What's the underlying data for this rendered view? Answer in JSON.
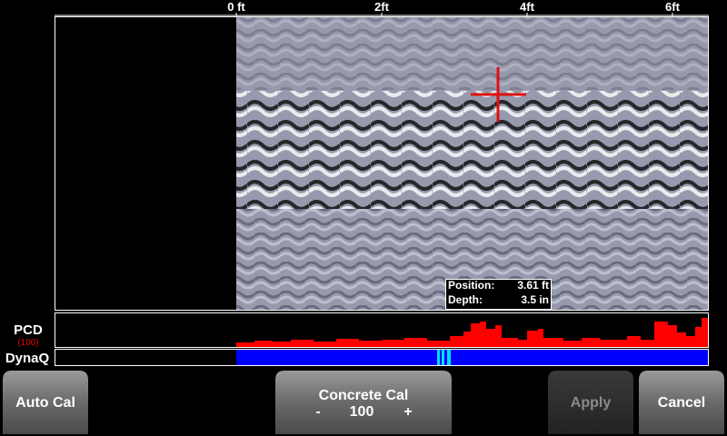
{
  "axis": {
    "ticks": [
      "0 ft",
      "2ft",
      "4ft",
      "6ft"
    ]
  },
  "readout": {
    "position_label": "Position:",
    "position_value": "3.61 ft",
    "depth_label": "Depth:",
    "depth_value": "3.5 in"
  },
  "pcd": {
    "label": "PCD",
    "gain": "(100)"
  },
  "dynaq": {
    "label": "DynaQ"
  },
  "buttons": {
    "auto_cal": "Auto Cal",
    "concrete_cal": {
      "label": "Concrete Cal",
      "minus": "-",
      "value": "100",
      "plus": "+"
    },
    "apply": "Apply",
    "cancel": "Cancel"
  }
}
